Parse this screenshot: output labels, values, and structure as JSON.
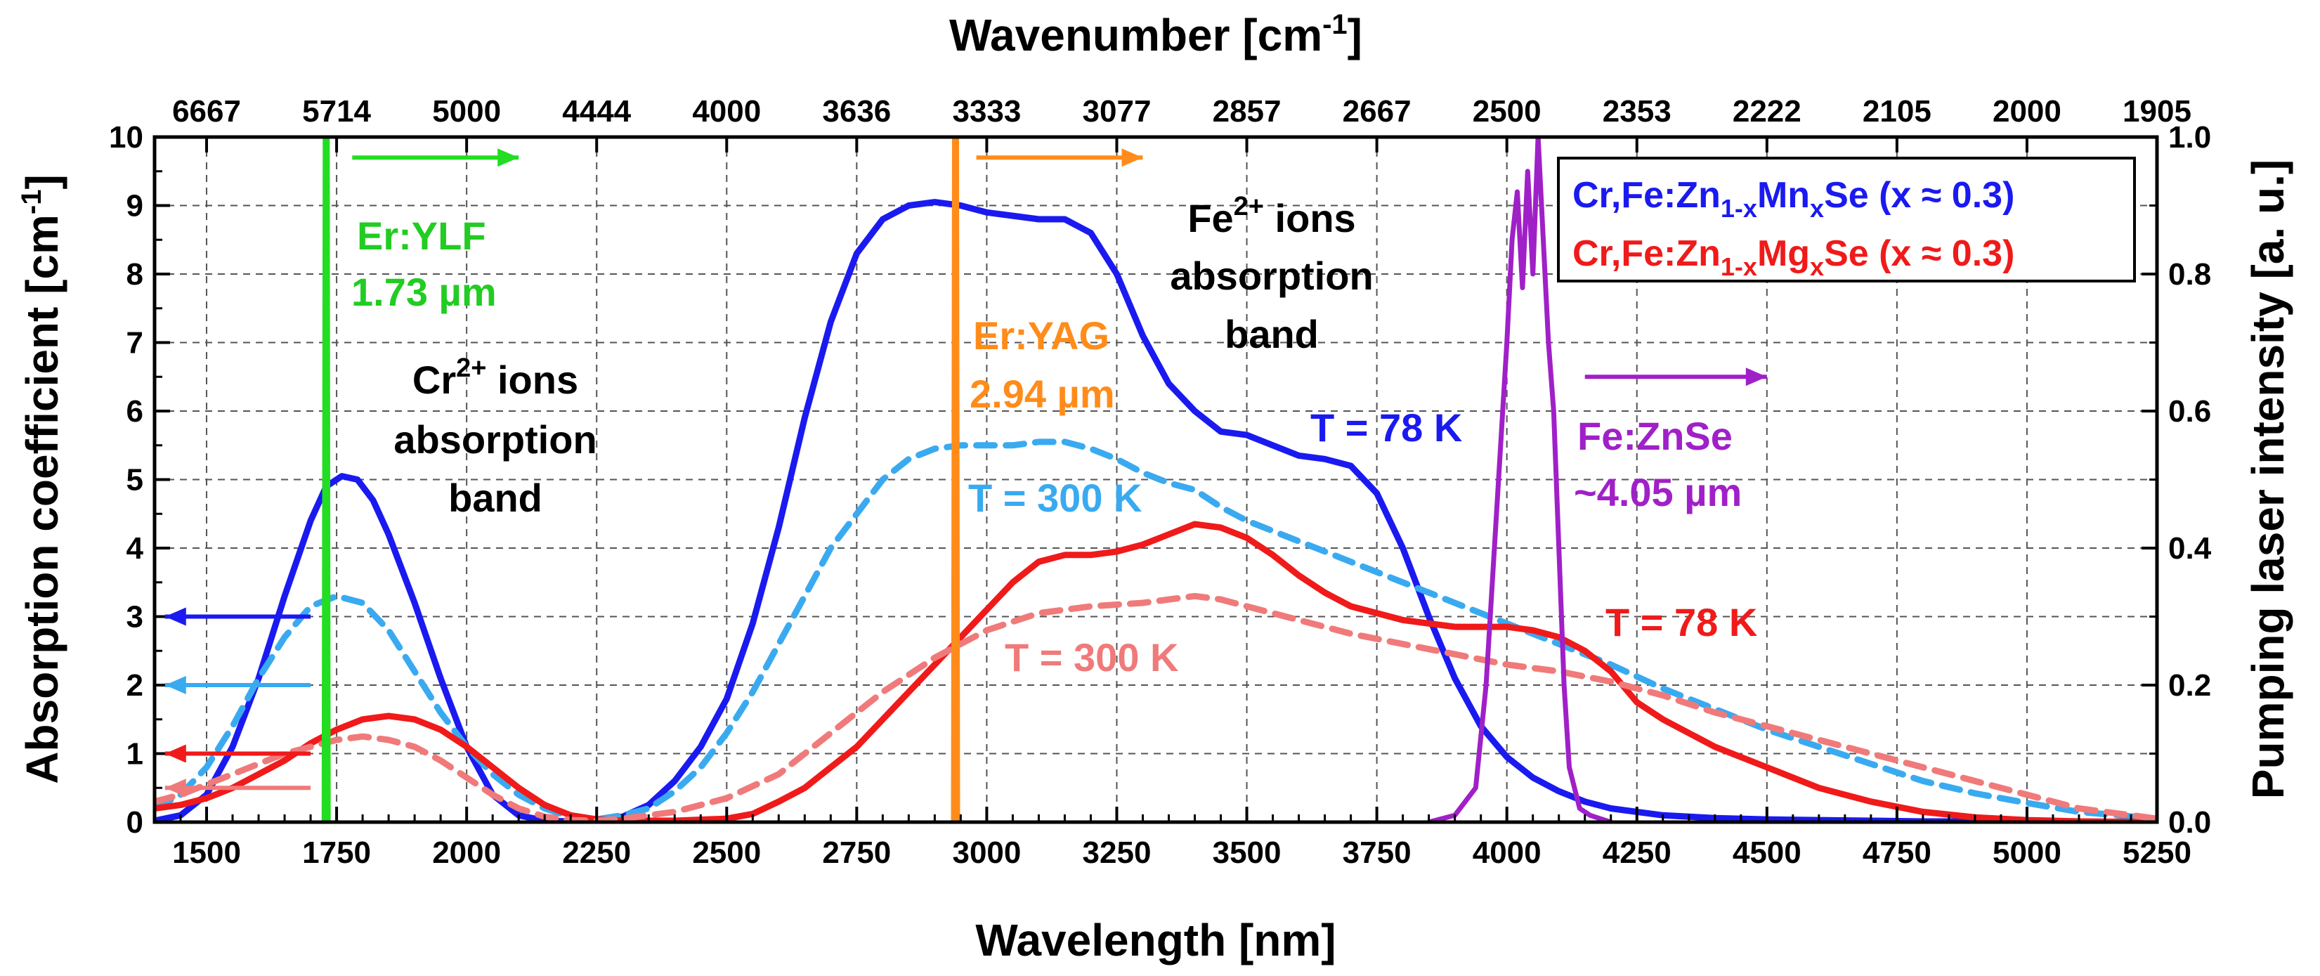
{
  "chart_data": {
    "type": "line",
    "title": "",
    "xlabel": "Wavelength [nm]",
    "ylabel": "Absorption coefficient [cm",
    "ylabel_sup": "-1",
    "ylabel_end": "]",
    "y2label": "Pumping laser intensity [a. u.]",
    "x2label": "Wavenumber [cm",
    "x2label_sup": "-1",
    "x2label_end": "]",
    "xlim": [
      1400,
      5250
    ],
    "ylim": [
      0,
      10
    ],
    "y2lim": [
      0,
      1.0
    ],
    "grid": true,
    "x_ticks": [
      1500,
      1750,
      2000,
      2250,
      2500,
      2750,
      3000,
      3250,
      3500,
      3750,
      4000,
      4250,
      4500,
      4750,
      5000,
      5250
    ],
    "y_ticks": [
      0,
      1,
      2,
      3,
      4,
      5,
      6,
      7,
      8,
      9,
      10
    ],
    "y2_ticks": [
      "0.0",
      "0.2",
      "0.4",
      "0.6",
      "0.8",
      "1.0"
    ],
    "top_ticks": [
      "6667",
      "5714",
      "5000",
      "4444",
      "4000",
      "3636",
      "3333",
      "3077",
      "2857",
      "2667",
      "2500",
      "2353",
      "2222",
      "2105",
      "2000",
      "1905"
    ],
    "legend": [
      {
        "main": "Cr,Fe:Zn",
        "sub": "1-x",
        "mid": "Mn",
        "sub2": "x",
        "end": "Se (x ≈ 0.3)",
        "color": "#1a1af0"
      },
      {
        "main": "Cr,Fe:Zn",
        "sub": "1-x",
        "mid": "Mg",
        "sub2": "x",
        "end": "Se (x ≈ 0.3)",
        "color": "#f01a1a"
      }
    ],
    "series": [
      {
        "name": "Cr,Fe:Zn1-xMnxSe T = 78 K",
        "color": "#1a1af0",
        "style": "solid",
        "x": [
          1400,
          1450,
          1500,
          1550,
          1600,
          1650,
          1700,
          1730,
          1760,
          1790,
          1820,
          1850,
          1900,
          1950,
          2000,
          2050,
          2100,
          2150,
          2200,
          2250,
          2300,
          2350,
          2400,
          2450,
          2500,
          2550,
          2600,
          2650,
          2700,
          2750,
          2800,
          2850,
          2900,
          2950,
          3000,
          3050,
          3100,
          3150,
          3200,
          3250,
          3300,
          3350,
          3400,
          3450,
          3500,
          3550,
          3600,
          3650,
          3700,
          3750,
          3800,
          3850,
          3900,
          3950,
          4000,
          4050,
          4100,
          4150,
          4200,
          4300,
          4400,
          4500,
          4600,
          4700,
          4800,
          4900,
          5000,
          5100,
          5250
        ],
        "y": [
          0.02,
          0.1,
          0.4,
          1.1,
          2.1,
          3.3,
          4.4,
          4.9,
          5.05,
          5.0,
          4.7,
          4.2,
          3.2,
          2.1,
          1.1,
          0.4,
          0.1,
          0.02,
          0.01,
          0.02,
          0.08,
          0.25,
          0.6,
          1.1,
          1.8,
          2.9,
          4.3,
          5.9,
          7.3,
          8.3,
          8.8,
          9.0,
          9.05,
          9.0,
          8.9,
          8.85,
          8.8,
          8.8,
          8.6,
          8.0,
          7.1,
          6.4,
          6.0,
          5.7,
          5.65,
          5.5,
          5.35,
          5.3,
          5.2,
          4.8,
          4.0,
          3.0,
          2.1,
          1.4,
          0.95,
          0.65,
          0.45,
          0.3,
          0.2,
          0.1,
          0.06,
          0.04,
          0.03,
          0.02,
          0.01,
          0.01,
          0.0,
          0.0,
          0.0
        ]
      },
      {
        "name": "Cr,Fe:Zn1-xMnxSe T = 300 K",
        "color": "#3aaaf0",
        "style": "dashed",
        "x": [
          1400,
          1450,
          1500,
          1550,
          1600,
          1650,
          1700,
          1750,
          1800,
          1850,
          1900,
          1950,
          2000,
          2050,
          2100,
          2150,
          2200,
          2250,
          2300,
          2350,
          2400,
          2450,
          2500,
          2550,
          2600,
          2650,
          2700,
          2750,
          2800,
          2850,
          2900,
          2950,
          3000,
          3050,
          3100,
          3150,
          3200,
          3250,
          3300,
          3350,
          3400,
          3450,
          3500,
          3600,
          3700,
          3800,
          3900,
          4000,
          4100,
          4200,
          4300,
          4400,
          4500,
          4600,
          4700,
          4800,
          4900,
          5000,
          5100,
          5250
        ],
        "y": [
          0.2,
          0.4,
          0.8,
          1.4,
          2.1,
          2.7,
          3.15,
          3.3,
          3.2,
          2.8,
          2.2,
          1.6,
          1.1,
          0.7,
          0.4,
          0.2,
          0.08,
          0.04,
          0.1,
          0.2,
          0.45,
          0.8,
          1.3,
          1.9,
          2.6,
          3.3,
          4.0,
          4.5,
          5.0,
          5.3,
          5.45,
          5.5,
          5.5,
          5.5,
          5.55,
          5.55,
          5.45,
          5.3,
          5.1,
          4.95,
          4.85,
          4.6,
          4.4,
          4.1,
          3.8,
          3.5,
          3.2,
          2.9,
          2.6,
          2.3,
          1.95,
          1.65,
          1.35,
          1.1,
          0.85,
          0.6,
          0.42,
          0.28,
          0.15,
          0.05
        ]
      },
      {
        "name": "Cr,Fe:Zn1-xMgxSe T = 78 K",
        "color": "#f01a1a",
        "style": "solid",
        "x": [
          1400,
          1450,
          1500,
          1550,
          1600,
          1650,
          1700,
          1750,
          1800,
          1850,
          1900,
          1950,
          2000,
          2050,
          2100,
          2150,
          2200,
          2250,
          2300,
          2400,
          2500,
          2550,
          2600,
          2650,
          2700,
          2750,
          2800,
          2850,
          2900,
          2950,
          3000,
          3050,
          3100,
          3150,
          3200,
          3250,
          3300,
          3350,
          3400,
          3450,
          3500,
          3550,
          3600,
          3650,
          3700,
          3800,
          3900,
          4000,
          4050,
          4100,
          4150,
          4200,
          4250,
          4300,
          4350,
          4400,
          4500,
          4600,
          4700,
          4800,
          4900,
          5000,
          5100,
          5250
        ],
        "y": [
          0.2,
          0.25,
          0.35,
          0.5,
          0.7,
          0.9,
          1.15,
          1.35,
          1.5,
          1.55,
          1.5,
          1.35,
          1.1,
          0.8,
          0.5,
          0.25,
          0.1,
          0.04,
          0.02,
          0.02,
          0.05,
          0.12,
          0.3,
          0.5,
          0.8,
          1.1,
          1.5,
          1.9,
          2.3,
          2.7,
          3.1,
          3.5,
          3.8,
          3.9,
          3.9,
          3.95,
          4.05,
          4.2,
          4.35,
          4.3,
          4.15,
          3.9,
          3.6,
          3.35,
          3.15,
          2.95,
          2.85,
          2.85,
          2.8,
          2.7,
          2.5,
          2.2,
          1.75,
          1.5,
          1.3,
          1.1,
          0.8,
          0.5,
          0.3,
          0.15,
          0.07,
          0.03,
          0.01,
          0.0
        ]
      },
      {
        "name": "Cr,Fe:Zn1-xMgxSe T = 300 K",
        "color": "#f07a7a",
        "style": "dashed",
        "x": [
          1400,
          1450,
          1500,
          1550,
          1600,
          1650,
          1700,
          1750,
          1800,
          1850,
          1900,
          1950,
          2000,
          2050,
          2100,
          2150,
          2200,
          2250,
          2300,
          2400,
          2500,
          2600,
          2700,
          2800,
          2900,
          3000,
          3100,
          3200,
          3300,
          3400,
          3450,
          3500,
          3600,
          3700,
          3800,
          3900,
          4000,
          4100,
          4200,
          4300,
          4400,
          4500,
          4600,
          4700,
          4800,
          4900,
          5000,
          5100,
          5250
        ],
        "y": [
          0.3,
          0.4,
          0.55,
          0.7,
          0.85,
          1.0,
          1.1,
          1.2,
          1.25,
          1.2,
          1.1,
          0.9,
          0.65,
          0.4,
          0.2,
          0.08,
          0.03,
          0.02,
          0.05,
          0.15,
          0.35,
          0.7,
          1.3,
          1.9,
          2.4,
          2.8,
          3.05,
          3.15,
          3.2,
          3.3,
          3.25,
          3.15,
          2.95,
          2.75,
          2.6,
          2.45,
          2.3,
          2.2,
          2.05,
          1.85,
          1.6,
          1.4,
          1.2,
          1.0,
          0.8,
          0.6,
          0.4,
          0.2,
          0.05
        ]
      },
      {
        "name": "Er:YLF 1.73 µm pump",
        "color": "#22dd22",
        "style": "solid",
        "axis": "y2",
        "x": [
          1726,
          1728,
          1730,
          1732,
          1734
        ],
        "y": [
          0.0,
          1.0,
          1.0,
          1.0,
          0.0
        ]
      },
      {
        "name": "Er:YAG 2.94 µm pump",
        "color": "#ff8c1a",
        "style": "solid",
        "axis": "y2",
        "x": [
          2936,
          2938,
          2940,
          2942,
          2944
        ],
        "y": [
          0.0,
          1.0,
          1.0,
          1.0,
          0.0
        ]
      },
      {
        "name": "Fe:ZnSe ~4.05 µm pump",
        "color": "#a020c8",
        "style": "solid",
        "axis": "y2",
        "x": [
          3850,
          3900,
          3940,
          3960,
          3980,
          4000,
          4010,
          4020,
          4030,
          4040,
          4050,
          4060,
          4070,
          4080,
          4090,
          4100,
          4110,
          4120,
          4140,
          4160,
          4200
        ],
        "y": [
          0.0,
          0.01,
          0.05,
          0.2,
          0.45,
          0.7,
          0.85,
          0.92,
          0.78,
          0.95,
          0.8,
          1.0,
          0.85,
          0.7,
          0.6,
          0.4,
          0.2,
          0.08,
          0.02,
          0.01,
          0.0
        ]
      }
    ],
    "annotations": [
      {
        "text": "Er:YLF",
        "color": "#22cc22"
      },
      {
        "text": "1.73 µm",
        "color": "#22cc22"
      },
      {
        "text": "Cr",
        "sup": "2+",
        "rest": " ions",
        "color": "#000000"
      },
      {
        "text": "absorption",
        "color": "#000000"
      },
      {
        "text": "band",
        "color": "#000000"
      },
      {
        "text": "Er:YAG",
        "color": "#ff8c1a"
      },
      {
        "text": "2.94 µm",
        "color": "#ff8c1a"
      },
      {
        "text": "Fe",
        "sup": "2+",
        "rest": " ions",
        "color": "#000000"
      },
      {
        "text": "absorption",
        "color": "#000000"
      },
      {
        "text": "band",
        "color": "#000000"
      },
      {
        "text": "T = 78 K",
        "color": "#1a1af0"
      },
      {
        "text": "T = 300 K",
        "color": "#3aaaf0"
      },
      {
        "text": "T = 300 K",
        "color": "#f07a7a"
      },
      {
        "text": "T = 78 K",
        "color": "#f01a1a"
      },
      {
        "text": "Fe:ZnSe",
        "color": "#a020c8"
      },
      {
        "text": "~4.05 µm",
        "color": "#a020c8"
      }
    ],
    "arrows": [
      {
        "name": "arrow-blue-78K-left",
        "color": "#1a1af0",
        "y": 3.0
      },
      {
        "name": "arrow-lightblue-300K-left",
        "color": "#3aaaf0",
        "y": 2.0
      },
      {
        "name": "arrow-red-78K-left",
        "color": "#f01a1a",
        "y": 1.0
      },
      {
        "name": "arrow-pink-300K-left",
        "color": "#f07a7a",
        "y": 0.5
      },
      {
        "name": "arrow-green-right",
        "color": "#22dd22",
        "y": 9.7
      },
      {
        "name": "arrow-orange-right",
        "color": "#ff8c1a",
        "y": 9.7
      },
      {
        "name": "arrow-purple-right",
        "color": "#a020c8",
        "y": 6.5
      }
    ]
  }
}
